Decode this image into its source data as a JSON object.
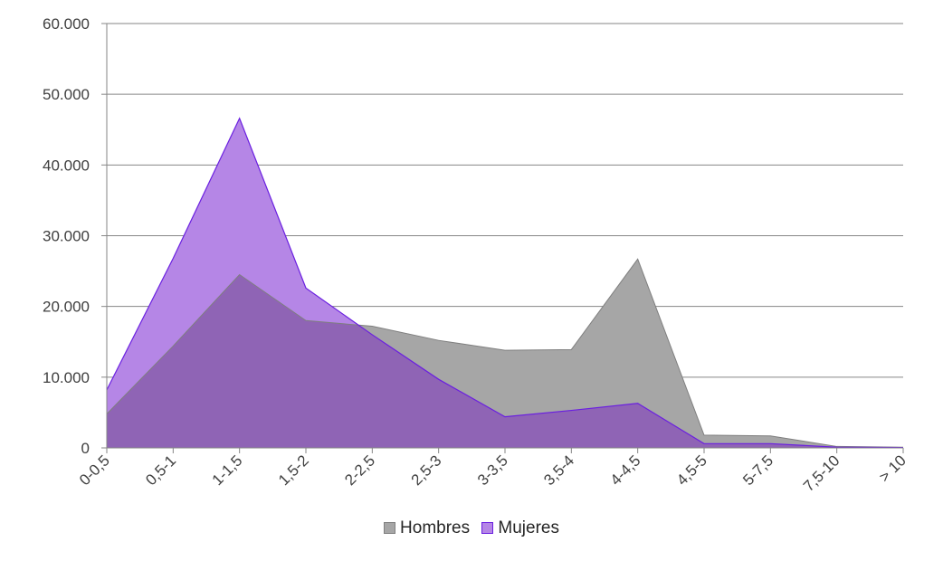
{
  "chart_data": {
    "type": "area",
    "categories": [
      "0-0,5",
      "0,5-1",
      "1-1,5",
      "1,5-2",
      "2-2,5",
      "2,5-3",
      "3-3,5",
      "3,5-4",
      "4-4,5",
      "4,5-5",
      "5-7,5",
      "7,5-10",
      "> 10"
    ],
    "series": [
      {
        "name": "Hombres",
        "values": [
          4800,
          14400,
          24500,
          18000,
          17200,
          15200,
          13800,
          13900,
          26700,
          1800,
          1700,
          200,
          100
        ],
        "fill": "#a6a6a6",
        "stroke": "#7f7f7f"
      },
      {
        "name": "Mujeres",
        "values": [
          8200,
          26800,
          46600,
          22600,
          16000,
          9700,
          4400,
          5300,
          6300,
          600,
          600,
          100,
          50
        ],
        "fill": "#b586e6",
        "stroke": "#6a1fe0"
      }
    ],
    "overlap_fill": "#8f64b5",
    "ylim": [
      0,
      60000
    ],
    "yticks": [
      "0",
      "10.000",
      "20.000",
      "30.000",
      "40.000",
      "50.000",
      "60.000"
    ],
    "ytick_values": [
      0,
      10000,
      20000,
      30000,
      40000,
      50000,
      60000
    ],
    "grid": true,
    "legend_position": "bottom",
    "title": "",
    "xlabel": "",
    "ylabel": ""
  }
}
